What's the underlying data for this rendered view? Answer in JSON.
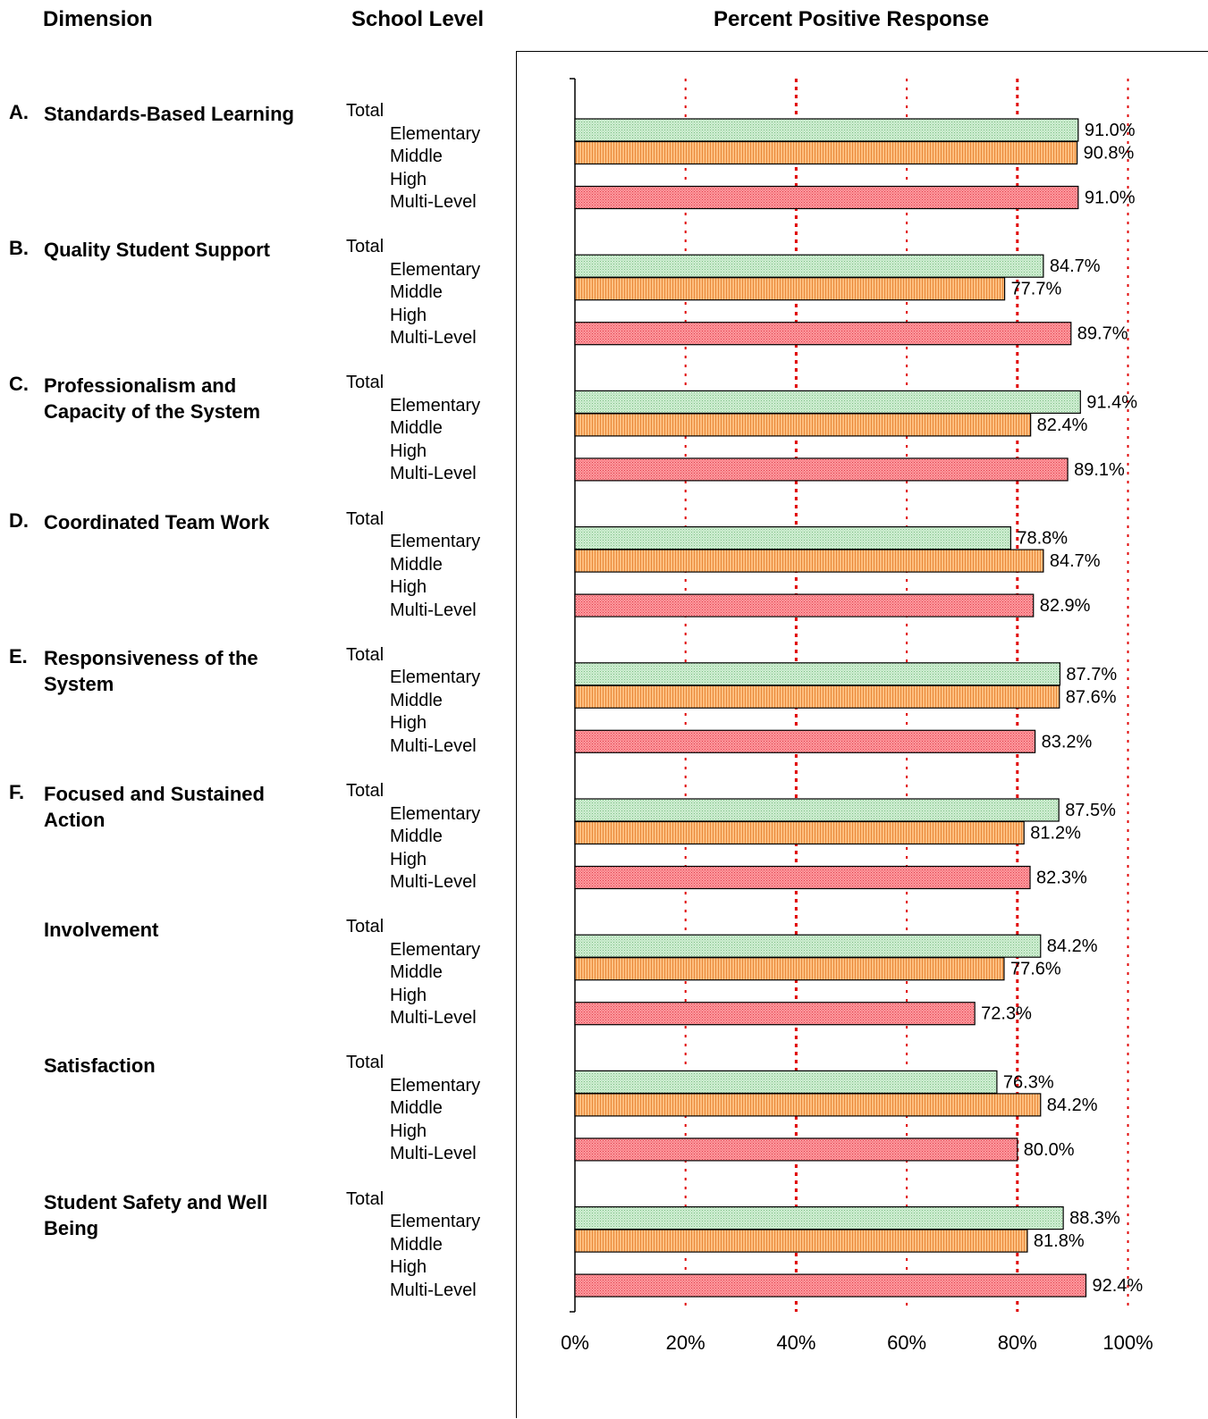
{
  "headers": {
    "dimension": "Dimension",
    "school_level": "School Level",
    "percent": "Percent Positive Response"
  },
  "level_labels": [
    "Total",
    "Elementary",
    "Middle",
    "High",
    "Multi-Level"
  ],
  "groups": [
    {
      "letter": "A.",
      "name": "Standards-Based Learning"
    },
    {
      "letter": "B.",
      "name": "Quality Student Support"
    },
    {
      "letter": "C.",
      "name": "Professionalism and Capacity of the System"
    },
    {
      "letter": "D.",
      "name": "Coordinated Team Work"
    },
    {
      "letter": "E.",
      "name": "Responsiveness of the System"
    },
    {
      "letter": "F.",
      "name": "Focused and Sustained Action"
    },
    {
      "letter": "",
      "name": "Involvement"
    },
    {
      "letter": "",
      "name": "Satisfaction"
    },
    {
      "letter": "",
      "name": "Student Safety and Well Being"
    }
  ],
  "colors": {
    "elementary": "#b9e3bd",
    "middle": "#f7a85f",
    "multi_level": "#f26d75",
    "gridline": "#e00000",
    "axis": "#000000"
  },
  "chart_data": {
    "type": "bar",
    "orientation": "horizontal",
    "title": "Percent Positive Response",
    "xlim": [
      0,
      100
    ],
    "x_ticks": [
      "0%",
      "20%",
      "40%",
      "60%",
      "80%",
      "100%"
    ],
    "grid": "vertical dotted red",
    "categories": [
      "Standards-Based Learning",
      "Quality Student Support",
      "Professionalism and Capacity of the System",
      "Coordinated Team Work",
      "Responsiveness of the System",
      "Focused and Sustained Action",
      "Involvement",
      "Satisfaction",
      "Student Safety and Well Being"
    ],
    "series": [
      {
        "name": "Elementary",
        "values": [
          91.0,
          84.7,
          91.4,
          78.8,
          87.7,
          87.5,
          84.2,
          76.3,
          88.3
        ],
        "labels": [
          "91.0%",
          "84.7%",
          "91.4%",
          "78.8%",
          "87.7%",
          "87.5%",
          "84.2%",
          "76.3%",
          "88.3%"
        ]
      },
      {
        "name": "Middle",
        "values": [
          90.8,
          77.7,
          82.4,
          84.7,
          87.6,
          81.2,
          77.6,
          84.2,
          81.8
        ],
        "labels": [
          "90.8%",
          "77.7%",
          "82.4%",
          "84.7%",
          "87.6%",
          "81.2%",
          "77.6%",
          "84.2%",
          "81.8%"
        ]
      },
      {
        "name": "Multi-Level",
        "values": [
          91.0,
          89.7,
          89.1,
          82.9,
          83.2,
          82.3,
          72.3,
          80.0,
          92.4
        ],
        "labels": [
          "91.0%",
          "89.7%",
          "89.1%",
          "82.9%",
          "83.2%",
          "82.3%",
          "72.3%",
          "80.0%",
          "92.4%"
        ]
      }
    ]
  }
}
